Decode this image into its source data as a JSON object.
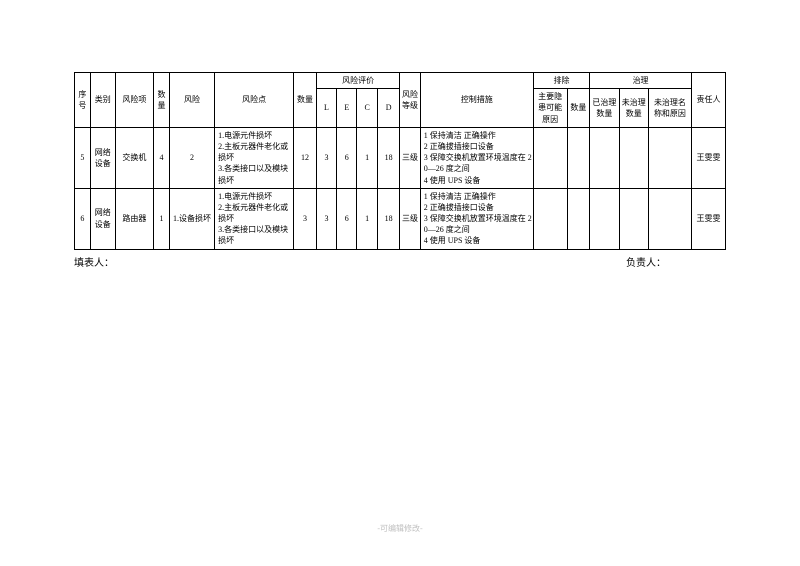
{
  "table": {
    "header": {
      "seq": "序号",
      "category": "类别",
      "risk_item": "风险项",
      "qty": "数量",
      "risk": "风险",
      "risk_point": "风险点",
      "qty2": "数量",
      "eval_group": "风险评价",
      "L": "L",
      "E": "E",
      "C": "C",
      "D": "D",
      "risk_level": "风险等级",
      "control": "控制措施",
      "exclude_group": "排除",
      "main_reason": "主要隐患可能原因",
      "qty3": "数量",
      "treat_group": "治理",
      "treated_qty": "已治理数量",
      "untreated_qty": "未治理数量",
      "untreated_reason": "未治理名称和原因",
      "responsible": "责任人"
    },
    "rows": [
      {
        "seq": "5",
        "category": "网络设备",
        "risk_item": "交换机",
        "qty": "4",
        "risk": "2",
        "risk_point": "1.电源元件损坏\n2.主板元器件老化或损坏\n3.各类接口以及模块损坏",
        "qty2": "12",
        "L": "3",
        "E": "6",
        "C": "1",
        "D": "18",
        "risk_level": "三级",
        "control": "1 保持清洁 正确操作\n2 正确拔插接口设备\n3 保障交换机放置环境温度在 20—26 度之间\n4 使用 UPS 设备",
        "main_reason": "",
        "qty3": "",
        "treated_qty": "",
        "untreated_qty": "",
        "untreated_reason": "",
        "responsible": "王雯雯"
      },
      {
        "seq": "6",
        "category": "网络设备",
        "risk_item": "路由器",
        "qty": "1",
        "risk": "1.设备损坏",
        "risk_point": "1.电源元件损坏\n2.主板元器件老化或损坏\n3.各类接口以及模块损坏",
        "qty2": "3",
        "L": "3",
        "E": "6",
        "C": "1",
        "D": "18",
        "risk_level": "三级",
        "control": "1 保持清洁 正确操作\n2 正确拔插接口设备\n3 保障交换机放置环境温度在 20—26 度之间\n4 使用 UPS 设备",
        "main_reason": "",
        "qty3": "",
        "treated_qty": "",
        "untreated_qty": "",
        "untreated_reason": "",
        "responsible": "王雯雯"
      }
    ]
  },
  "footer": {
    "left": "填表人：",
    "right": "负责人："
  },
  "watermark": "-可编辑修改-",
  "colwidths": {
    "seq": 14,
    "category": 22,
    "risk_item": 34,
    "qty": 14,
    "risk": 40,
    "risk_point": 70,
    "qty2": 20,
    "L": 18,
    "E": 18,
    "C": 18,
    "D": 20,
    "risk_level": 18,
    "control": 100,
    "main_reason": 30,
    "qty3": 20,
    "treated_qty": 26,
    "untreated_qty": 26,
    "untreated_reason": 38,
    "responsible": 30
  }
}
